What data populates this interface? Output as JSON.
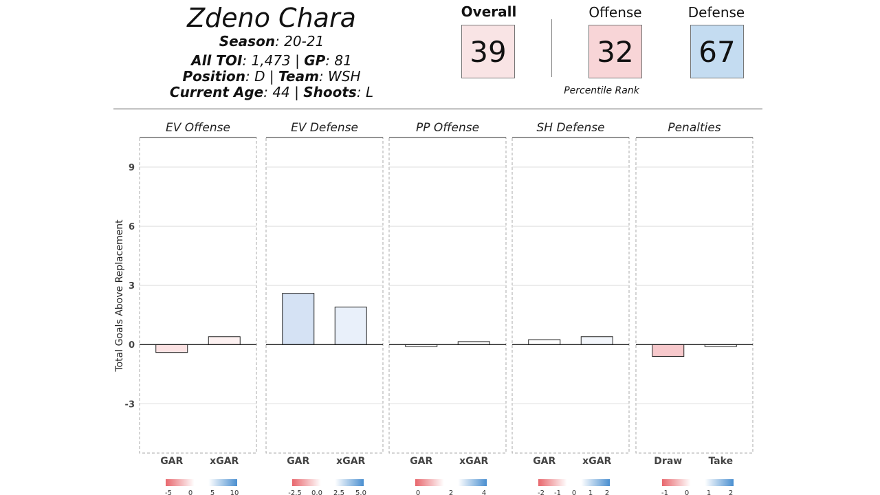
{
  "header": {
    "player_name": "Zdeno Chara",
    "season_label": "Season",
    "season_value": "20-21",
    "toi_label": "All TOI",
    "toi_value": "1,473",
    "gp_label": "GP",
    "gp_value": "81",
    "position_label": "Position",
    "position_value": "D",
    "team_label": "Team",
    "team_value": "WSH",
    "age_label": "Current Age",
    "age_value": "44",
    "shoots_label": "Shoots",
    "shoots_value": "L"
  },
  "scores": {
    "overall": {
      "label": "Overall",
      "value": "39",
      "color": "#f9e4e5"
    },
    "offense": {
      "label": "Offense",
      "value": "32",
      "color": "#f8d5d7"
    },
    "defense": {
      "label": "Defense",
      "value": "67",
      "color": "#c4dcf1"
    },
    "percentile_label": "Percentile Rank"
  },
  "chart_data": {
    "type": "bar",
    "ylabel": "Total Goals Above Replacement",
    "ylim": [
      -5.5,
      10.5
    ],
    "yticks": [
      -3,
      0,
      3,
      6,
      9
    ],
    "grid": true,
    "panels": [
      {
        "title": "EV Offense",
        "categories": [
          "GAR",
          "xGAR"
        ],
        "values": [
          -0.4,
          0.4
        ],
        "colors": [
          "#fbe2e3",
          "#fdf1f1"
        ],
        "legend": {
          "ticks": [
            "-5",
            "0",
            "5",
            "10"
          ]
        }
      },
      {
        "title": "EV Defense",
        "categories": [
          "GAR",
          "xGAR"
        ],
        "values": [
          2.6,
          1.9
        ],
        "colors": [
          "#d5e2f4",
          "#e9f0fa"
        ],
        "legend": {
          "ticks": [
            "-2.5",
            "0.0",
            "2.5",
            "5.0"
          ]
        }
      },
      {
        "title": "PP Offense",
        "categories": [
          "GAR",
          "xGAR"
        ],
        "values": [
          -0.1,
          0.15
        ],
        "colors": [
          "#ffffff",
          "#ffffff"
        ],
        "legend": {
          "ticks": [
            "0",
            "2",
            "4"
          ]
        }
      },
      {
        "title": "SH Defense",
        "categories": [
          "GAR",
          "xGAR"
        ],
        "values": [
          0.25,
          0.4
        ],
        "colors": [
          "#ffffff",
          "#f3f6fb"
        ],
        "legend": {
          "ticks": [
            "-2",
            "-1",
            "0",
            "1",
            "2"
          ]
        }
      },
      {
        "title": "Penalties",
        "categories": [
          "Draw",
          "Take"
        ],
        "values": [
          -0.6,
          -0.1
        ],
        "colors": [
          "#f7c9cc",
          "#ffffff"
        ],
        "legend": {
          "ticks": [
            "-1",
            "0",
            "1",
            "2"
          ]
        }
      }
    ]
  }
}
